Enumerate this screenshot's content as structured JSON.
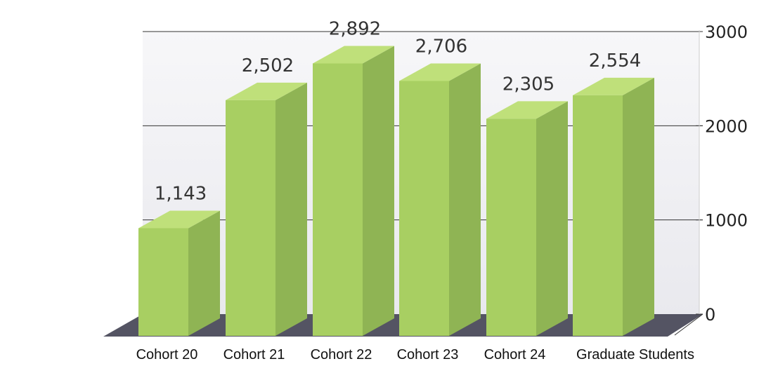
{
  "chart_data": {
    "type": "bar",
    "categories": [
      "Cohort 20",
      "Cohort 21",
      "Cohort 22",
      "Cohort 23",
      "Cohort 24",
      "Graduate Students"
    ],
    "values": [
      1143,
      2502,
      2892,
      2706,
      2305,
      2554
    ],
    "value_labels": [
      "1,143",
      "2,502",
      "2,892",
      "2,706",
      "2,305",
      "2,554"
    ],
    "ylim": [
      0,
      3000
    ],
    "y_ticks": [
      0,
      1000,
      2000,
      3000
    ],
    "y_tick_labels": [
      "0",
      "1000",
      "2000",
      "3000"
    ],
    "y_axis_side": "right",
    "grid": true,
    "style": "3d",
    "colors": {
      "bar_front": "#a8cf62",
      "bar_side": "#8fb454",
      "bar_top": "#bfe07a",
      "floor": "#545463",
      "wall": "#efeff3",
      "grid": "#333333"
    }
  }
}
